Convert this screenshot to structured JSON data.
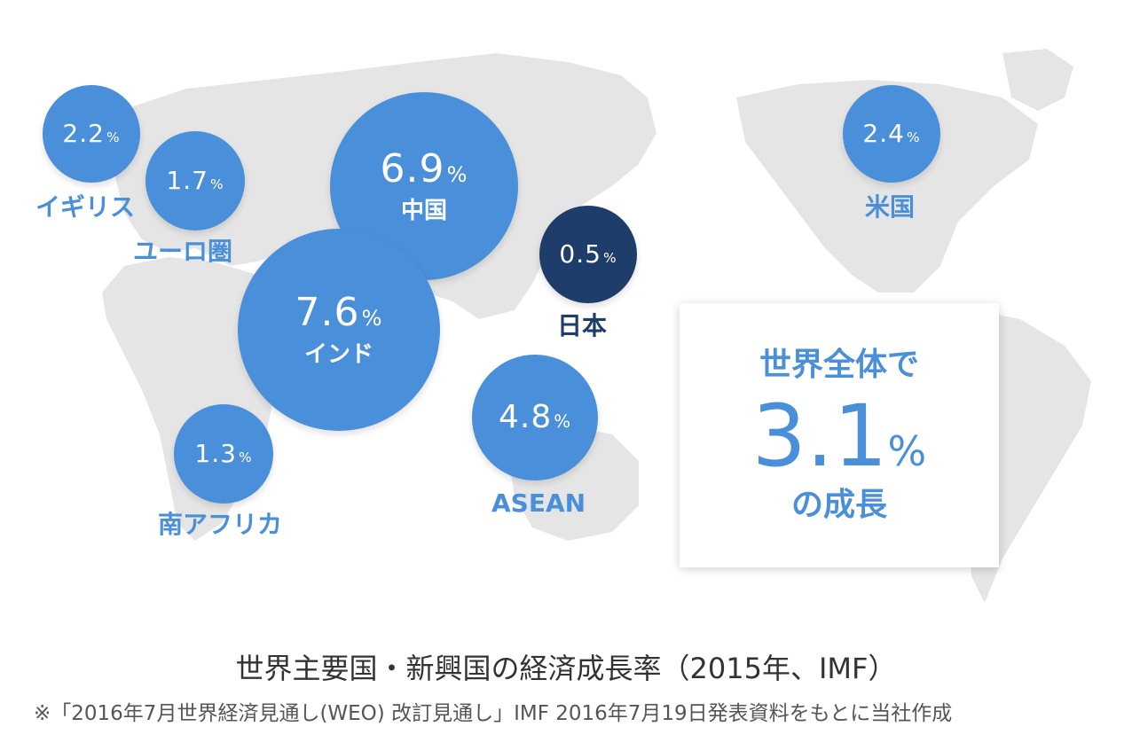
{
  "chart_data": {
    "type": "bubble-map",
    "title": "世界主要国・新興国の経済成長率（2015年、IMF）",
    "note": "※「2016年7月世界経済見通し(WEO) 改訂見通し」IMF 2016年7月19日発表資料をもとに当社作成",
    "unit": "%",
    "regions": [
      {
        "id": "uk",
        "name": "イギリス",
        "value": 2.2,
        "value_text": "2.2"
      },
      {
        "id": "euro",
        "name": "ユーロ圏",
        "value": 1.7,
        "value_text": "1.7"
      },
      {
        "id": "china",
        "name": "中国",
        "value": 6.9,
        "value_text": "6.9"
      },
      {
        "id": "india",
        "name": "インド",
        "value": 7.6,
        "value_text": "7.6"
      },
      {
        "id": "japan",
        "name": "日本",
        "value": 0.5,
        "value_text": "0.5"
      },
      {
        "id": "asean",
        "name": "ASEAN",
        "value": 4.8,
        "value_text": "4.8"
      },
      {
        "id": "south_africa",
        "name": "南アフリカ",
        "value": 1.3,
        "value_text": "1.3"
      },
      {
        "id": "usa",
        "name": "米国",
        "value": 2.4,
        "value_text": "2.4"
      }
    ],
    "world": {
      "line1": "世界全体で",
      "value": 3.1,
      "value_text": "3.1",
      "line3": "の成長"
    }
  },
  "colors": {
    "bubble": "#4a8fd9",
    "bubble_highlight": "#1f3d6b",
    "land": "#e5e5e5",
    "title_text": "#333333"
  }
}
